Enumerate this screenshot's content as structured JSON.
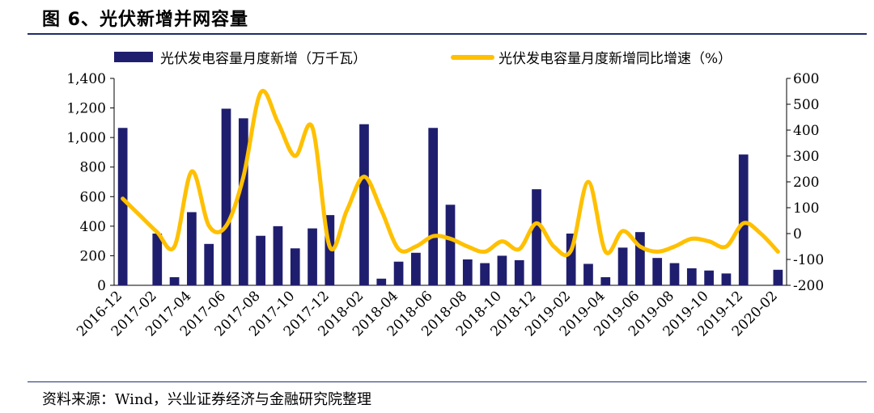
{
  "title": "图  6、光伏新增并网容量",
  "source": "资料来源：Wind，兴业证券经济与金融研究院整理",
  "colors": {
    "bar": "#1f1e6e",
    "line": "#ffc000",
    "rule": "#1f2d6b"
  },
  "chart_data": {
    "type": "bar+line",
    "categories": [
      "2016-12",
      "2017-01",
      "2017-02",
      "2017-03",
      "2017-04",
      "2017-05",
      "2017-06",
      "2017-07",
      "2017-08",
      "2017-09",
      "2017-10",
      "2017-11",
      "2017-12",
      "2018-01",
      "2018-02",
      "2018-03",
      "2018-04",
      "2018-05",
      "2018-06",
      "2018-07",
      "2018-08",
      "2018-09",
      "2018-10",
      "2018-11",
      "2018-12",
      "2019-01",
      "2019-02",
      "2019-03",
      "2019-04",
      "2019-05",
      "2019-06",
      "2019-07",
      "2019-08",
      "2019-09",
      "2019-10",
      "2019-11",
      "2019-12",
      "2020-01",
      "2020-02"
    ],
    "x_tick_labels": [
      "2016-12",
      "2017-02",
      "2017-04",
      "2017-06",
      "2017-08",
      "2017-10",
      "2017-12",
      "2018-02",
      "2018-04",
      "2018-06",
      "2018-08",
      "2018-10",
      "2018-12",
      "2019-02",
      "2019-04",
      "2019-06",
      "2019-08",
      "2019-10",
      "2019-12",
      "2020-02"
    ],
    "series": [
      {
        "name": "光伏发电容量月度新增（万千瓦）",
        "type": "bar",
        "axis": "left",
        "values": [
          1065,
          null,
          350,
          55,
          495,
          280,
          1195,
          1130,
          335,
          400,
          250,
          385,
          475,
          null,
          1090,
          45,
          160,
          220,
          1065,
          545,
          175,
          150,
          200,
          170,
          650,
          null,
          350,
          145,
          55,
          255,
          360,
          185,
          150,
          115,
          100,
          80,
          885,
          null,
          105
        ]
      },
      {
        "name": "光伏发电容量月度新增同比增速（%）",
        "type": "line",
        "axis": "right",
        "values": [
          135,
          70,
          5,
          -50,
          240,
          30,
          30,
          220,
          545,
          430,
          300,
          410,
          -50,
          90,
          220,
          90,
          -60,
          -50,
          -10,
          -20,
          -50,
          -70,
          -30,
          -60,
          40,
          -50,
          -65,
          200,
          -70,
          10,
          -50,
          -70,
          -50,
          -20,
          -30,
          -50,
          40,
          0,
          -70
        ]
      }
    ],
    "y_left": {
      "ylim": [
        0,
        1400
      ],
      "ticks": [
        "0",
        "200",
        "400",
        "600",
        "800",
        "1,000",
        "1,200",
        "1,400"
      ]
    },
    "y_right": {
      "ylim": [
        -200,
        600
      ],
      "ticks": [
        "-200",
        "-100",
        "0",
        "100",
        "200",
        "300",
        "400",
        "500",
        "600"
      ]
    },
    "legend": {
      "placement": "top",
      "items": [
        "光伏发电容量月度新增（万千瓦）",
        "光伏发电容量月度新增同比增速（%）"
      ]
    }
  }
}
